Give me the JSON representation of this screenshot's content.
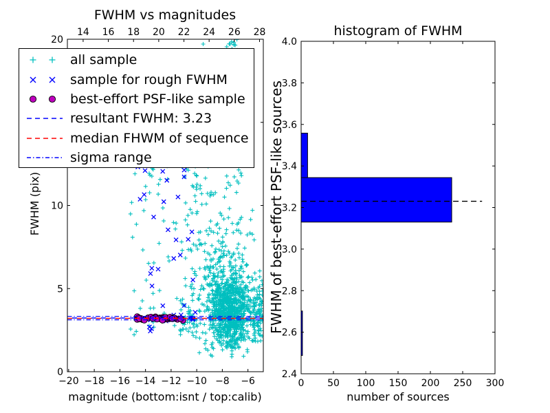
{
  "colors": {
    "cyan": "#00bfbf",
    "blue": "#0000ff",
    "magenta": "#bf00bf",
    "red": "#ff0000",
    "black": "#000000",
    "hist_fill": "#0000ff",
    "background": "#ffffff"
  },
  "legend": {
    "items": [
      {
        "label": "all sample",
        "marker": "plus",
        "color": "#00bfbf"
      },
      {
        "label": "sample for rough FWHM",
        "marker": "x",
        "color": "#0000ff"
      },
      {
        "label": "best-effort PSF-like sample",
        "marker": "circle",
        "color": "#bf00bf"
      },
      {
        "label": "resultant FWHM: 3.23",
        "marker": "dashed",
        "color": "#0000ff"
      },
      {
        "label": "median FHWM of sequence",
        "marker": "dashed",
        "color": "#ff0000"
      },
      {
        "label": "sigma range",
        "marker": "dashdot",
        "color": "#0000ff"
      }
    ]
  },
  "chart_data": [
    {
      "type": "scatter",
      "title": "FWHM vs magnitudes",
      "xlabel": "magnitude (bottom:isnt / top:calib)",
      "ylabel": "FWHM (pix)",
      "xlim": [
        -20.1,
        -4.8
      ],
      "ylim": [
        0,
        20
      ],
      "xticks": [
        {
          "v": -20,
          "label": "−20"
        },
        {
          "v": -18,
          "label": "−18"
        },
        {
          "v": -16,
          "label": "−16"
        },
        {
          "v": -14,
          "label": "−14"
        },
        {
          "v": -12,
          "label": "−12"
        },
        {
          "v": -10,
          "label": "−10"
        },
        {
          "v": -8,
          "label": "−8"
        },
        {
          "v": -6,
          "label": "−6"
        }
      ],
      "yticks": [
        {
          "v": 0,
          "label": "0"
        },
        {
          "v": 5,
          "label": "5"
        },
        {
          "v": 10,
          "label": "10"
        },
        {
          "v": 15,
          "label": "15"
        },
        {
          "v": 20,
          "label": "20"
        }
      ],
      "top_axis": {
        "lim": [
          12.75,
          28.3
        ],
        "ticks": [
          {
            "v": 14,
            "label": "14"
          },
          {
            "v": 16,
            "label": "16"
          },
          {
            "v": 18,
            "label": "18"
          },
          {
            "v": 20,
            "label": "20"
          },
          {
            "v": 22,
            "label": "22"
          },
          {
            "v": 24,
            "label": "24"
          },
          {
            "v": 26,
            "label": "26"
          },
          {
            "v": 28,
            "label": "28"
          }
        ]
      },
      "grid": false,
      "legend_position": "upper left",
      "seed": 7,
      "series": [
        {
          "name": "all sample",
          "marker": "+",
          "color": "#00bfbf",
          "clusters": [
            {
              "n": 850,
              "x": {
                "dist": "gauss",
                "mean": -7.35,
                "sd": 0.8,
                "min": -9.7,
                "max": -5.0
              },
              "y": {
                "dist": "gauss",
                "mean": 3.7,
                "sd": 1.1,
                "min": 1.4,
                "max": 7.5
              }
            },
            {
              "n": 220,
              "x": {
                "dist": "gauss",
                "mean": -7.6,
                "sd": 1.0,
                "min": -9.7,
                "max": -5.3
              },
              "y": {
                "dist": "gauss",
                "mean": 5.5,
                "sd": 2.2,
                "min": 1.5,
                "max": 13.5
              }
            },
            {
              "n": 110,
              "x": {
                "dist": "uniform",
                "min": -10.9,
                "max": -8.7
              },
              "y": {
                "dist": "uniform",
                "min": 2.0,
                "max": 13.0
              }
            },
            {
              "n": 60,
              "x": {
                "dist": "uniform",
                "min": -15.2,
                "max": -10.9
              },
              "y": {
                "dist": "uniform",
                "min": 1.9,
                "max": 13.5
              }
            },
            {
              "n": 50,
              "x": {
                "dist": "uniform",
                "min": -7.7,
                "max": -6.5
              },
              "y": {
                "dist": "uniform",
                "min": 11.0,
                "max": 20.3
              }
            },
            {
              "n": 20,
              "x": {
                "dist": "gauss",
                "mean": -7.1,
                "sd": 0.18,
                "min": -7.5,
                "max": -6.7
              },
              "y": {
                "dist": "uniform",
                "min": 18.8,
                "max": 20.4
              }
            },
            {
              "n": 8,
              "x": {
                "dist": "uniform",
                "min": -9.7,
                "max": -9.3
              },
              "y": {
                "dist": "uniform",
                "min": 17.5,
                "max": 20.3
              }
            },
            {
              "n": 90,
              "x": {
                "dist": "uniform",
                "min": -5.6,
                "max": -4.85
              },
              "y": {
                "dist": "gauss",
                "mean": 3.5,
                "sd": 1.0,
                "min": 1.8,
                "max": 6.5
              }
            },
            {
              "n": 30,
              "x": {
                "dist": "uniform",
                "min": -9.8,
                "max": -6.0
              },
              "y": {
                "dist": "uniform",
                "min": 0.9,
                "max": 1.9
              }
            },
            {
              "n": 30,
              "x": {
                "dist": "uniform",
                "min": -11.3,
                "max": -10.0
              },
              "y": {
                "dist": "gauss",
                "mean": 3.3,
                "sd": 0.6,
                "min": 2.2,
                "max": 5.0
              }
            }
          ]
        },
        {
          "name": "sample for rough FWHM",
          "marker": "x",
          "color": "#0000ff",
          "clusters": [
            {
              "n": 16,
              "x": {
                "dist": "uniform",
                "min": -14.7,
                "max": -10.1
              },
              "y": {
                "dist": "gauss",
                "mean": 3.25,
                "sd": 0.12,
                "min": 2.9,
                "max": 3.6
              }
            },
            {
              "n": 25,
              "x": {
                "dist": "uniform",
                "min": -14.7,
                "max": -10.0
              },
              "y": {
                "dist": "uniform",
                "min": 2.1,
                "max": 13.6
              }
            },
            {
              "n": 3,
              "x": {
                "dist": "uniform",
                "min": -12.5,
                "max": -10.4
              },
              "y": {
                "dist": "uniform",
                "min": 11.0,
                "max": 13.8
              }
            },
            {
              "n": 2,
              "x": {
                "dist": "uniform",
                "min": -13.7,
                "max": -13.3
              },
              "y": {
                "dist": "gauss",
                "mean": 2.45,
                "sd": 0.1,
                "min": 2.2,
                "max": 2.7
              }
            }
          ]
        },
        {
          "name": "best-effort PSF-like sample",
          "marker": "o",
          "color": "#bf00bf",
          "edge_color": "#000000",
          "clusters": [
            {
              "n": 44,
              "x": {
                "dist": "uniform",
                "min": -14.65,
                "max": -11.05
              },
              "y": {
                "dist": "gauss",
                "mean": 3.21,
                "sd": 0.05,
                "min": 3.08,
                "max": 3.36
              }
            }
          ]
        }
      ],
      "hlines": [
        {
          "name": "resultant FWHM: 3.23",
          "y": 3.23,
          "style": "dashed",
          "color": "#0000ff"
        },
        {
          "name": "median FHWM of sequence",
          "y": 3.21,
          "style": "dashed",
          "color": "#ff0000"
        },
        {
          "name": "sigma range",
          "y": [
            3.12,
            3.33
          ],
          "style": "dashdot",
          "color": "#0000ff"
        }
      ]
    },
    {
      "type": "bar",
      "orientation": "horizontal-histogram",
      "title": "histogram of FWHM",
      "xlabel": "number of sources",
      "ylabel": "FWHM of best-effort PSF-like sources",
      "xlim": [
        0,
        300
      ],
      "ylim": [
        2.4,
        4.0
      ],
      "xticks": [
        {
          "v": 0,
          "label": "0"
        },
        {
          "v": 50,
          "label": "50"
        },
        {
          "v": 100,
          "label": "100"
        },
        {
          "v": 150,
          "label": "150"
        },
        {
          "v": 200,
          "label": "200"
        },
        {
          "v": 250,
          "label": "250"
        },
        {
          "v": 300,
          "label": "300"
        }
      ],
      "yticks": [
        {
          "v": 2.4,
          "label": "2.4"
        },
        {
          "v": 2.6,
          "label": "2.6"
        },
        {
          "v": 2.8,
          "label": "2.8"
        },
        {
          "v": 3.0,
          "label": "3.0"
        },
        {
          "v": 3.2,
          "label": "3.2"
        },
        {
          "v": 3.4,
          "label": "3.4"
        },
        {
          "v": 3.6,
          "label": "3.6"
        },
        {
          "v": 3.8,
          "label": "3.8"
        },
        {
          "v": 4.0,
          "label": "4.0"
        }
      ],
      "bar_color": "#0000ff",
      "bar_edge_color": "#000000",
      "bars": [
        {
          "y_from": 2.488,
          "y_to": 2.702,
          "count": 2
        },
        {
          "y_from": 3.13,
          "y_to": 3.344,
          "count": 233
        },
        {
          "y_from": 3.344,
          "y_to": 3.558,
          "count": 10
        }
      ],
      "dashed_line": {
        "y": 3.23,
        "x_from": 0,
        "x_to": 280,
        "color": "#000000",
        "style": "dashed"
      }
    }
  ]
}
